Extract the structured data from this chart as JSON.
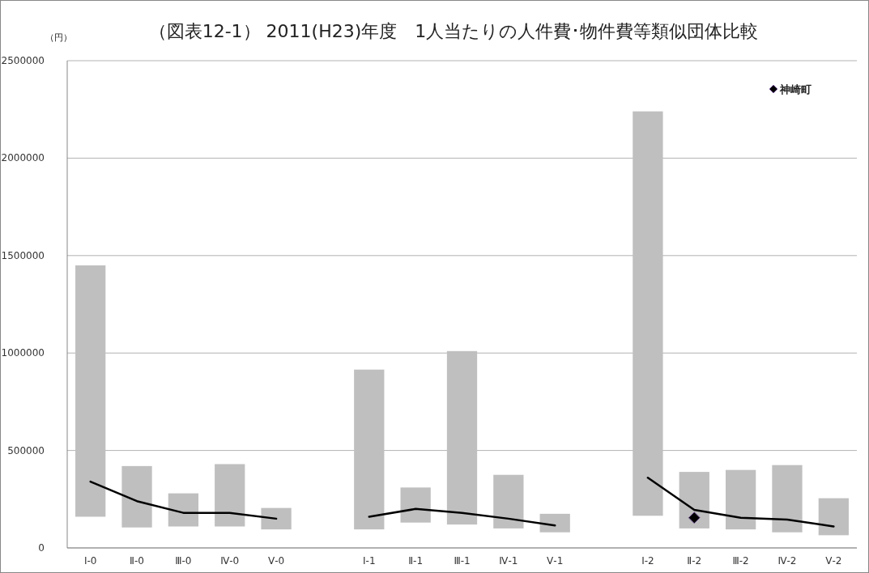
{
  "chart_data": {
    "type": "bar",
    "title": "（図表12-1） 2011(H23)年度　1人当たりの人件費･物件費等類似団体比較",
    "ylabel": "（円）",
    "categories": [
      "Ⅰ-0",
      "Ⅱ-0",
      "Ⅲ-0",
      "Ⅳ-0",
      "Ⅴ-0",
      null,
      "Ⅰ-1",
      "Ⅱ-1",
      "Ⅲ-1",
      "Ⅳ-1",
      "Ⅴ-1",
      null,
      "Ⅰ-2",
      "Ⅱ-2",
      "Ⅲ-2",
      "Ⅳ-2",
      "Ⅴ-2"
    ],
    "series": [
      {
        "color": "#bfbfbf",
        "base": [
          160000,
          105000,
          110000,
          110000,
          95000,
          null,
          95000,
          130000,
          120000,
          100000,
          80000,
          null,
          165000,
          100000,
          95000,
          80000,
          65000
        ],
        "values": [
          1290000,
          315000,
          170000,
          320000,
          110000,
          null,
          820000,
          180000,
          890000,
          275000,
          95000,
          null,
          2075000,
          290000,
          305000,
          345000,
          190000
        ]
      },
      {
        "type": "line",
        "color": "#000000",
        "values": [
          340000,
          240000,
          180000,
          180000,
          150000,
          null,
          160000,
          200000,
          180000,
          150000,
          115000,
          null,
          360000,
          195000,
          155000,
          145000,
          110000
        ]
      },
      {
        "type": "scatter",
        "name": "神崎町",
        "color": "#000000",
        "marker": "diamond",
        "values": [
          null,
          null,
          null,
          null,
          null,
          null,
          null,
          null,
          null,
          null,
          null,
          null,
          null,
          155000,
          null,
          null,
          null
        ]
      }
    ],
    "ylim": [
      0,
      2500000
    ],
    "yticks": [
      0,
      500000,
      1000000,
      1500000,
      2000000,
      2500000
    ],
    "grid": "y",
    "legend": "top right"
  }
}
